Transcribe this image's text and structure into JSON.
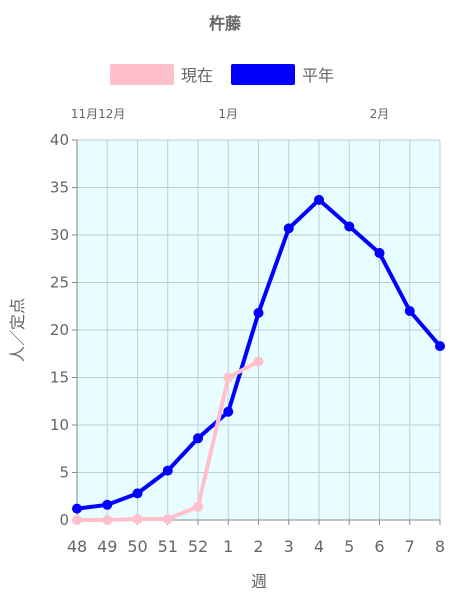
{
  "chart_data": {
    "type": "line",
    "title": "杵藤",
    "xlabel": "週",
    "ylabel": "人／定点",
    "categories": [
      "48",
      "49",
      "50",
      "51",
      "52",
      "1",
      "2",
      "3",
      "4",
      "5",
      "6",
      "7",
      "8"
    ],
    "month_labels": [
      {
        "label": "11月12月",
        "at": 0.7
      },
      {
        "label": "1月",
        "at": 5
      },
      {
        "label": "2月",
        "at": 10
      }
    ],
    "ylim": [
      0,
      40
    ],
    "yticks": [
      0,
      5,
      10,
      15,
      20,
      25,
      30,
      35,
      40
    ],
    "grid": true,
    "legend_position": "top",
    "plot_background": "#e8fdff",
    "series": [
      {
        "name": "現在",
        "color": "#ffc0cb",
        "values": [
          0.0,
          0.0,
          0.1,
          0.1,
          1.4,
          15.0,
          16.7,
          null,
          null,
          null,
          null,
          null,
          null
        ]
      },
      {
        "name": "平年",
        "color": "#0000ff",
        "values": [
          1.2,
          1.6,
          2.8,
          5.2,
          8.6,
          11.4,
          21.8,
          30.7,
          33.7,
          30.9,
          28.1,
          22.0,
          18.3
        ]
      }
    ]
  }
}
